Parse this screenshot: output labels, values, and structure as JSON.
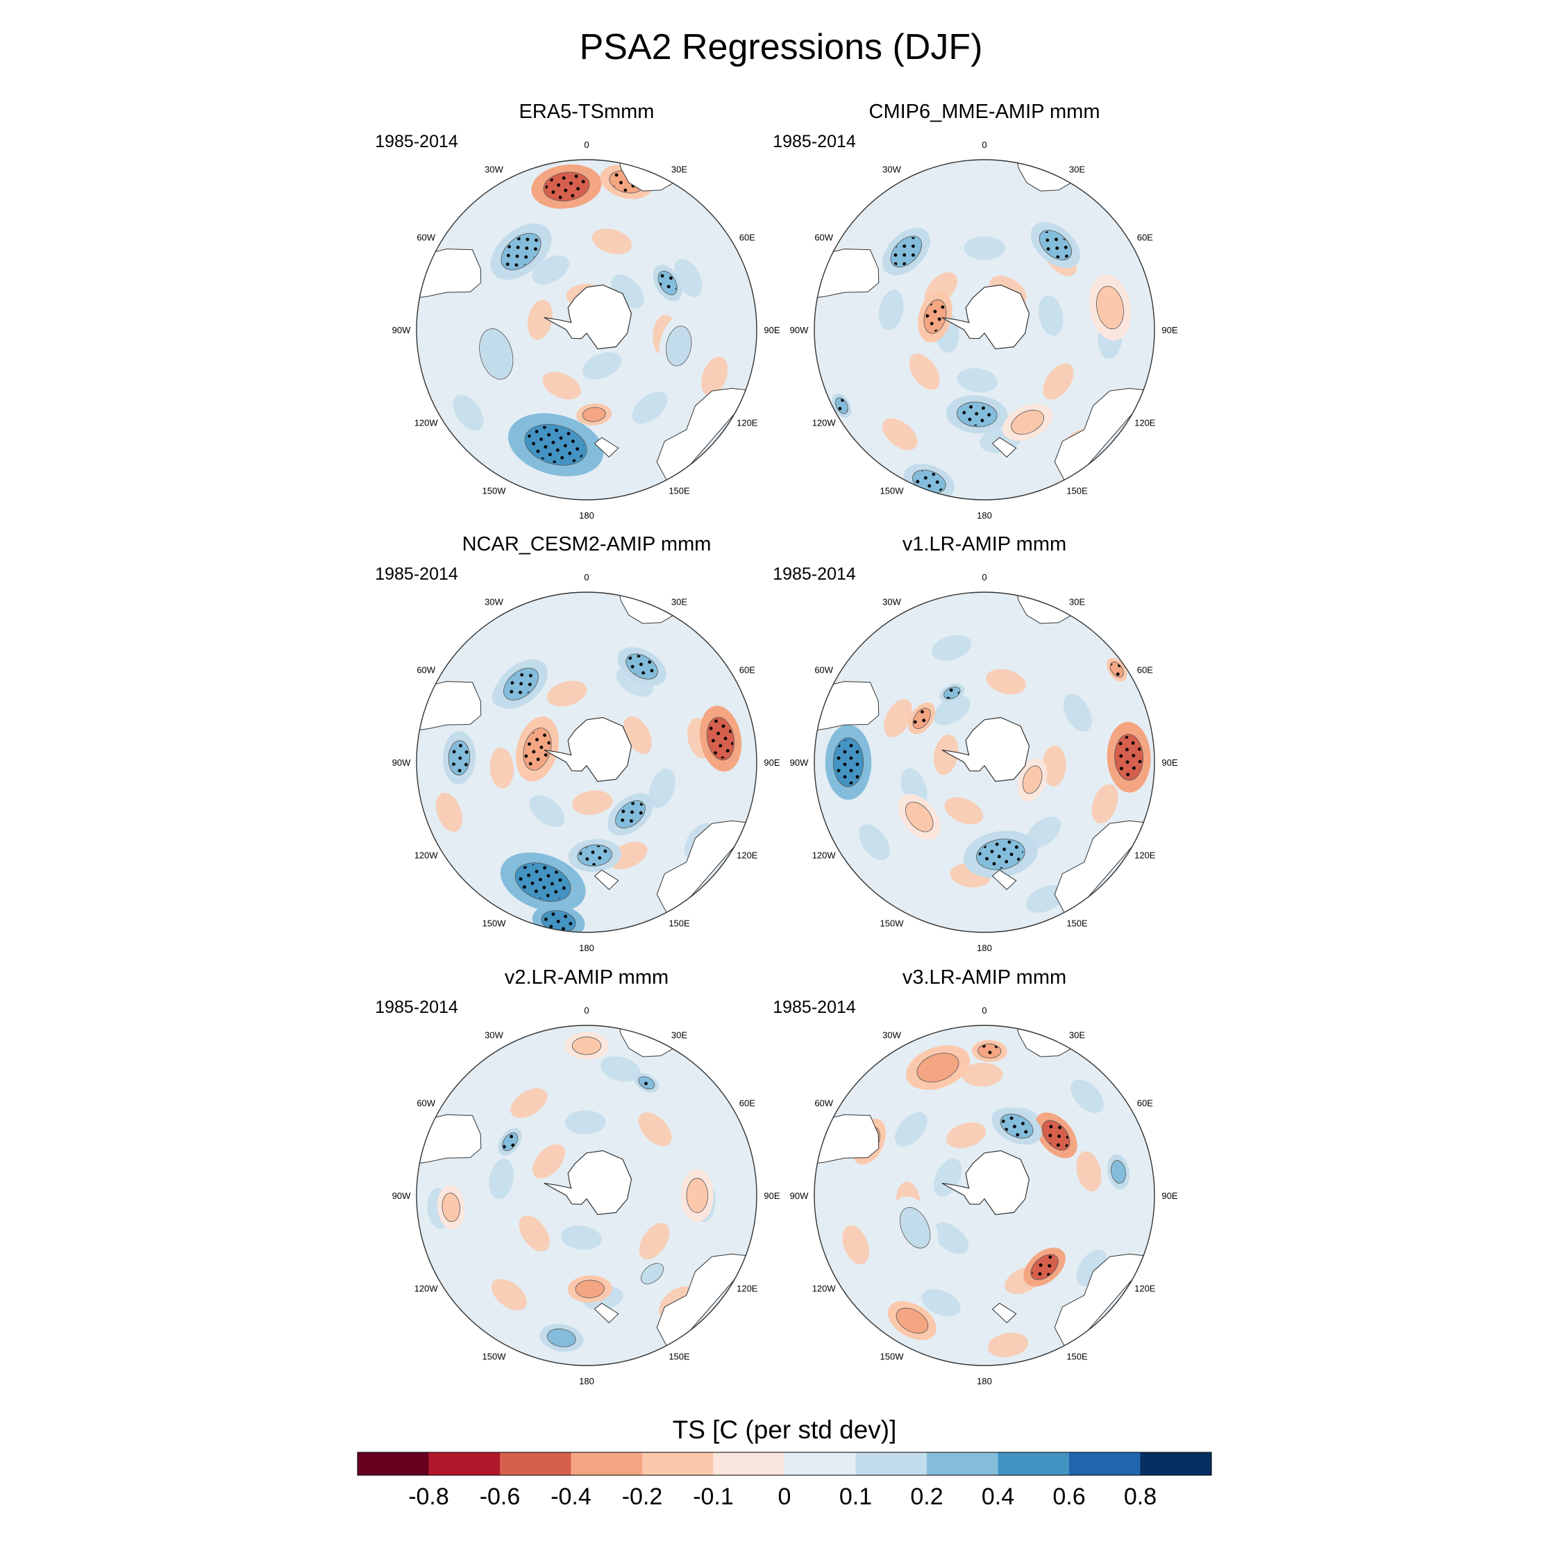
{
  "chart_data": {
    "type": "heatmap",
    "title": "PSA2 Regressions (DJF)",
    "projection": "south polar stereographic",
    "period": "1985-2014",
    "longitude_labels": [
      "0",
      "30E",
      "60E",
      "90E",
      "120E",
      "150E",
      "180",
      "150W",
      "120W",
      "90W",
      "60W",
      "30W"
    ],
    "panels": [
      {
        "title": "ERA5-TSmmm",
        "period_label": "1985-2014",
        "blobs": [
          {
            "lon": -8,
            "r": 0.85,
            "size": 0.16,
            "value": -0.45,
            "stipple": true
          },
          {
            "lon": 15,
            "r": 0.9,
            "size": 0.12,
            "value": -0.35,
            "stipple": true
          },
          {
            "lon": -40,
            "r": 0.6,
            "size": 0.16,
            "value": 0.35,
            "stipple": true
          },
          {
            "lon": 60,
            "r": 0.55,
            "size": 0.09,
            "value": 0.25,
            "stipple": true
          },
          {
            "lon": -165,
            "r": 0.7,
            "size": 0.22,
            "value": 0.45,
            "stipple": true
          },
          {
            "lon": 175,
            "r": 0.5,
            "size": 0.08,
            "value": -0.25,
            "stipple": false
          },
          {
            "lon": -105,
            "r": 0.55,
            "size": 0.18,
            "value": 0.15,
            "stipple": false
          },
          {
            "lon": 100,
            "r": 0.55,
            "size": 0.14,
            "value": 0.12,
            "stipple": false
          }
        ]
      },
      {
        "title": "CMIP6_MME-AMIP  mmm",
        "period_label": "1985-2014",
        "blobs": [
          {
            "lon": -45,
            "r": 0.65,
            "size": 0.13,
            "value": 0.35,
            "stipple": true
          },
          {
            "lon": 40,
            "r": 0.65,
            "size": 0.13,
            "value": 0.35,
            "stipple": true
          },
          {
            "lon": -75,
            "r": 0.3,
            "size": 0.12,
            "value": -0.35,
            "stipple": true
          },
          {
            "lon": 80,
            "r": 0.75,
            "size": 0.15,
            "value": -0.2,
            "stipple": false
          },
          {
            "lon": -175,
            "r": 0.5,
            "size": 0.14,
            "value": 0.25,
            "stipple": true
          },
          {
            "lon": 155,
            "r": 0.6,
            "size": 0.12,
            "value": -0.15,
            "stipple": false
          },
          {
            "lon": -160,
            "r": 0.95,
            "size": 0.12,
            "value": 0.3,
            "stipple": true
          },
          {
            "lon": -118,
            "r": 0.95,
            "size": 0.06,
            "value": 0.25,
            "stipple": true
          }
        ]
      },
      {
        "title": "NCAR_CESM2-AMIP  mmm",
        "period_label": "1985-2014",
        "blobs": [
          {
            "lon": 80,
            "r": 0.8,
            "size": 0.15,
            "value": -0.45,
            "stipple": true
          },
          {
            "lon": -75,
            "r": 0.3,
            "size": 0.15,
            "value": -0.4,
            "stipple": true
          },
          {
            "lon": -88,
            "r": 0.75,
            "size": 0.12,
            "value": 0.35,
            "stipple": true
          },
          {
            "lon": -160,
            "r": 0.75,
            "size": 0.2,
            "value": 0.45,
            "stipple": true
          },
          {
            "lon": 140,
            "r": 0.4,
            "size": 0.12,
            "value": 0.35,
            "stipple": true
          },
          {
            "lon": -40,
            "r": 0.6,
            "size": 0.14,
            "value": 0.3,
            "stipple": true
          },
          {
            "lon": 30,
            "r": 0.65,
            "size": 0.12,
            "value": 0.3,
            "stipple": true
          },
          {
            "lon": 175,
            "r": 0.55,
            "size": 0.12,
            "value": 0.35,
            "stipple": true
          },
          {
            "lon": -170,
            "r": 0.95,
            "size": 0.12,
            "value": 0.4,
            "stipple": true
          }
        ]
      },
      {
        "title": "v1.LR-AMIP  mmm",
        "period_label": "1985-2014",
        "blobs": [
          {
            "lon": -90,
            "r": 0.8,
            "size": 0.17,
            "value": 0.45,
            "stipple": true
          },
          {
            "lon": 88,
            "r": 0.85,
            "size": 0.16,
            "value": -0.45,
            "stipple": true
          },
          {
            "lon": 170,
            "r": 0.55,
            "size": 0.17,
            "value": 0.35,
            "stipple": true
          },
          {
            "lon": -55,
            "r": 0.45,
            "size": 0.08,
            "value": -0.3,
            "stipple": true
          },
          {
            "lon": 55,
            "r": 0.95,
            "size": 0.06,
            "value": -0.25,
            "stipple": true
          },
          {
            "lon": -25,
            "r": 0.45,
            "size": 0.06,
            "value": 0.2,
            "stipple": true
          },
          {
            "lon": 110,
            "r": 0.3,
            "size": 0.1,
            "value": -0.15,
            "stipple": false
          },
          {
            "lon": -130,
            "r": 0.5,
            "size": 0.12,
            "value": -0.12,
            "stipple": false
          }
        ]
      },
      {
        "title": "v2.LR-AMIP  mmm",
        "period_label": "1985-2014",
        "blobs": [
          {
            "lon": 178,
            "r": 0.55,
            "size": 0.1,
            "value": -0.35,
            "stipple": false
          },
          {
            "lon": 90,
            "r": 0.65,
            "size": 0.12,
            "value": -0.2,
            "stipple": false
          },
          {
            "lon": -95,
            "r": 0.8,
            "size": 0.1,
            "value": -0.2,
            "stipple": false
          },
          {
            "lon": 28,
            "r": 0.75,
            "size": 0.06,
            "value": 0.25,
            "stipple": true
          },
          {
            "lon": -55,
            "r": 0.55,
            "size": 0.07,
            "value": 0.25,
            "stipple": true
          },
          {
            "lon": -170,
            "r": 0.85,
            "size": 0.1,
            "value": 0.2,
            "stipple": false
          },
          {
            "lon": 140,
            "r": 0.6,
            "size": 0.09,
            "value": 0.15,
            "stipple": false
          },
          {
            "lon": 0,
            "r": 0.88,
            "size": 0.1,
            "value": -0.12,
            "stipple": false
          }
        ]
      },
      {
        "title": "v3.LR-AMIP  mmm",
        "period_label": "1985-2014",
        "blobs": [
          {
            "lon": 2,
            "r": 0.85,
            "size": 0.08,
            "value": -0.4,
            "stipple": true
          },
          {
            "lon": 50,
            "r": 0.55,
            "size": 0.12,
            "value": -0.45,
            "stipple": true
          },
          {
            "lon": 140,
            "r": 0.55,
            "size": 0.11,
            "value": -0.45,
            "stipple": true
          },
          {
            "lon": 25,
            "r": 0.45,
            "size": 0.12,
            "value": 0.3,
            "stipple": true
          },
          {
            "lon": 80,
            "r": 0.8,
            "size": 0.08,
            "value": 0.3,
            "stipple": false
          },
          {
            "lon": -20,
            "r": 0.8,
            "size": 0.15,
            "value": -0.25,
            "stipple": false
          },
          {
            "lon": -65,
            "r": 0.75,
            "size": 0.11,
            "value": -0.3,
            "stipple": false
          },
          {
            "lon": -115,
            "r": 0.45,
            "size": 0.15,
            "value": 0.15,
            "stipple": false
          },
          {
            "lon": -150,
            "r": 0.85,
            "size": 0.12,
            "value": -0.25,
            "stipple": false
          }
        ]
      }
    ],
    "colorbar": {
      "title": "TS [C (per std dev)]",
      "levels": [
        "-0.8",
        "-0.6",
        "-0.4",
        "-0.2",
        "-0.1",
        "0",
        "0.1",
        "0.2",
        "0.4",
        "0.6",
        "0.8"
      ],
      "level_values": [
        -0.8,
        -0.6,
        -0.4,
        -0.2,
        -0.1,
        0,
        0.1,
        0.2,
        0.4,
        0.6,
        0.8
      ],
      "colors": [
        "#67001f",
        "#b2182b",
        "#d6604d",
        "#f4a582",
        "#fbc8ac",
        "#fbe6dd",
        "#e4edf3",
        "#c3dceb",
        "#84bddb",
        "#4393c3",
        "#2166ac",
        "#053061"
      ]
    }
  }
}
